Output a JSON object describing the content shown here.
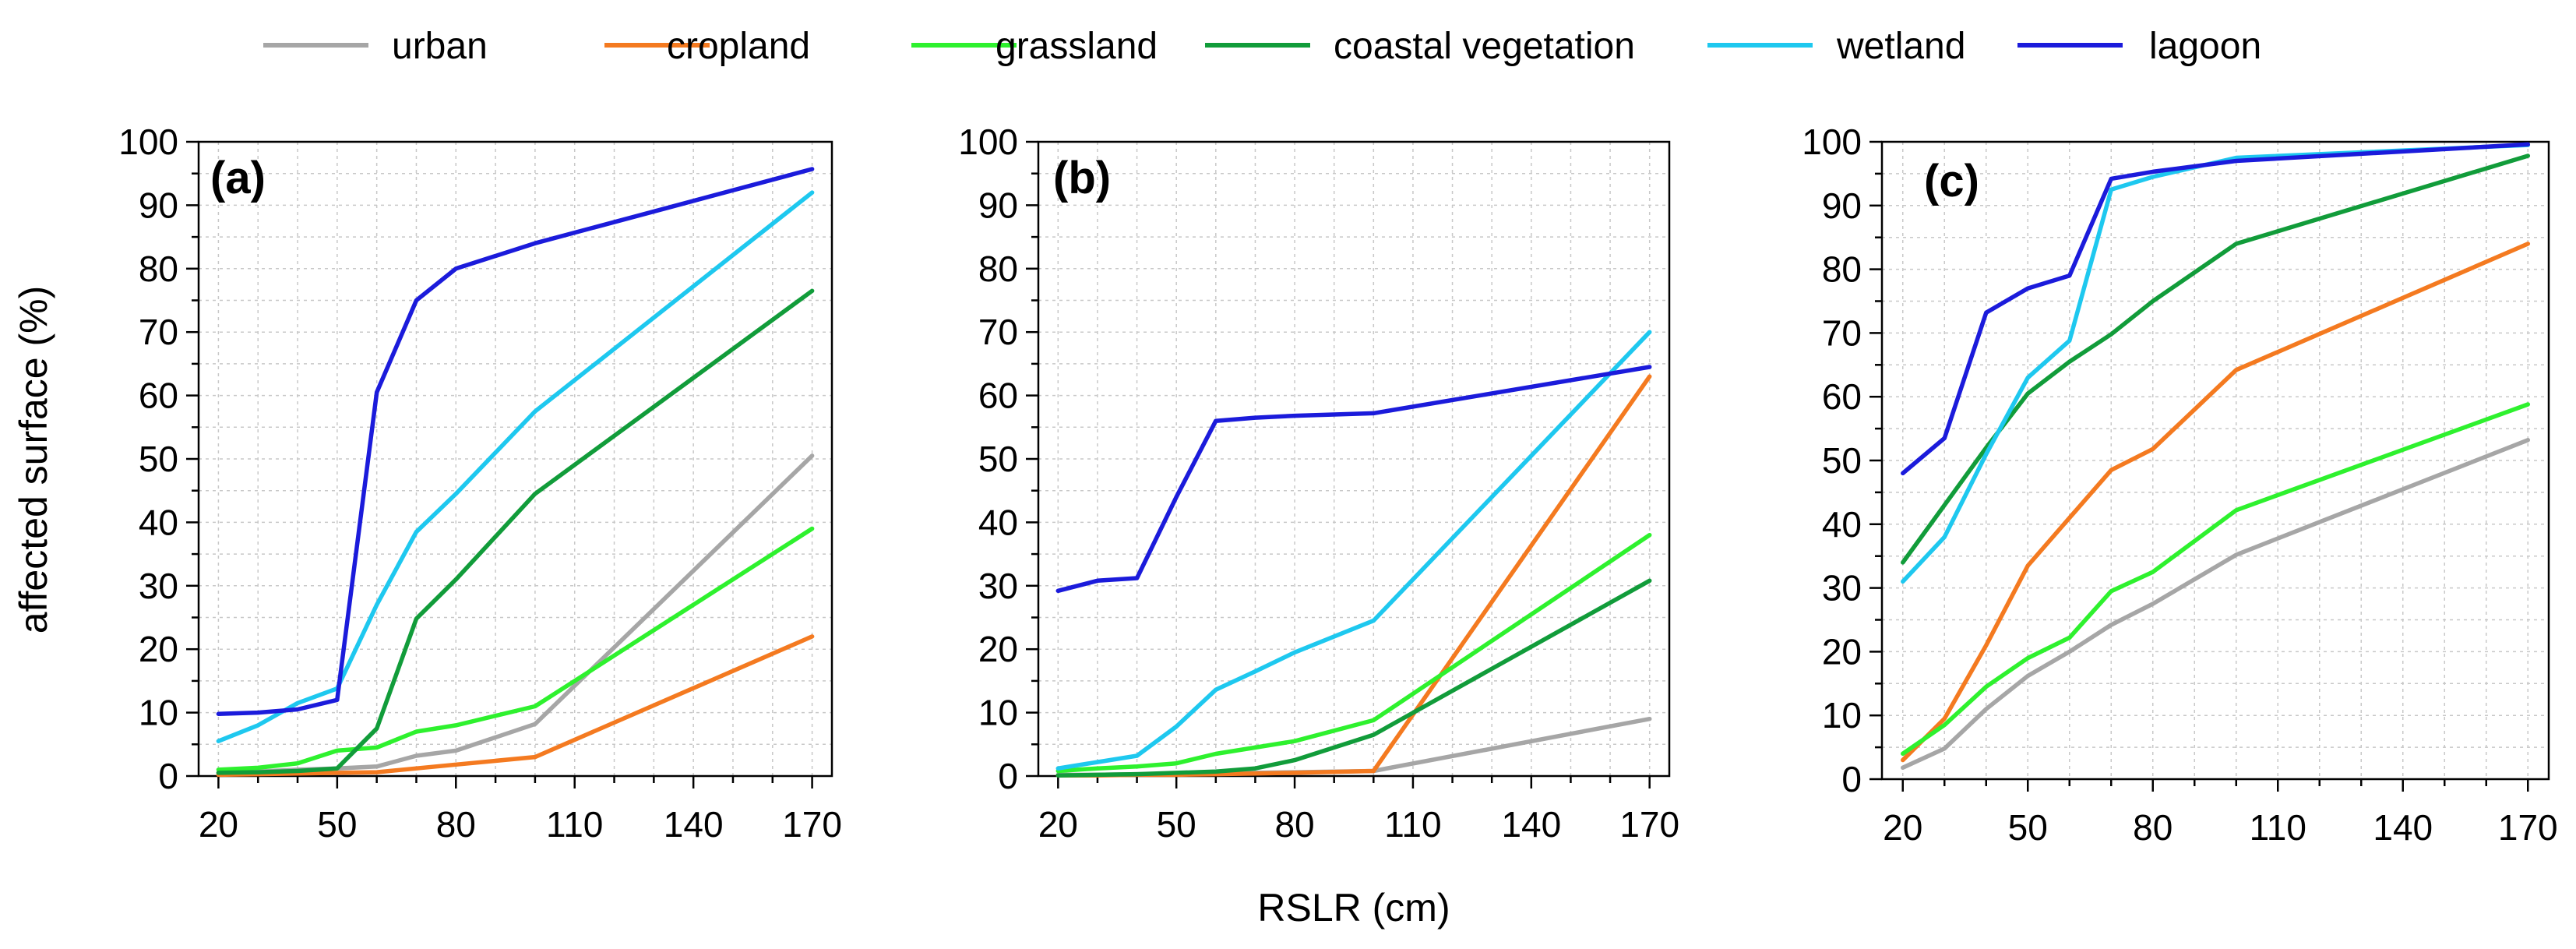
{
  "legend": [
    {
      "name": "urban",
      "color": "#a6a6a6"
    },
    {
      "name": "cropland",
      "color": "#f47a20"
    },
    {
      "name": "grassland",
      "color": "#2ef12e"
    },
    {
      "name": "coastal vegetation",
      "color": "#119c3a"
    },
    {
      "name": "wetland",
      "color": "#1ec8ef"
    },
    {
      "name": "lagoon",
      "color": "#1b1bdb"
    }
  ],
  "xlabel": "RSLR (cm)",
  "ylabel": "affected surface (%)",
  "chart_data": [
    {
      "type": "line",
      "panel": "(a)",
      "xlim": [
        15,
        175
      ],
      "ylim": [
        0,
        100
      ],
      "xticks": [
        20,
        50,
        80,
        110,
        140,
        170
      ],
      "yticks": [
        0,
        10,
        20,
        30,
        40,
        50,
        60,
        70,
        80,
        90,
        100
      ],
      "grid": true,
      "series": [
        {
          "name": "urban",
          "x": [
            20,
            30,
            40,
            50,
            60,
            70,
            80,
            100,
            170
          ],
          "values": [
            0.5,
            0.7,
            1,
            1.2,
            1.5,
            3.2,
            4,
            8.2,
            50.5
          ]
        },
        {
          "name": "cropland",
          "x": [
            20,
            30,
            40,
            50,
            60,
            70,
            80,
            100,
            170
          ],
          "values": [
            0.2,
            0.3,
            0.4,
            0.5,
            0.6,
            1.2,
            1.8,
            3,
            22
          ]
        },
        {
          "name": "grassland",
          "x": [
            20,
            30,
            40,
            50,
            60,
            70,
            80,
            100,
            170
          ],
          "values": [
            1,
            1.3,
            2,
            4,
            4.5,
            7,
            8,
            11,
            39
          ]
        },
        {
          "name": "coastal vegetation",
          "x": [
            20,
            30,
            40,
            50,
            60,
            70,
            80,
            100,
            170
          ],
          "values": [
            0.5,
            0.6,
            0.8,
            1.2,
            7.5,
            24.8,
            31,
            44.5,
            76.5
          ]
        },
        {
          "name": "wetland",
          "x": [
            20,
            30,
            40,
            50,
            60,
            70,
            80,
            100,
            170
          ],
          "values": [
            5.5,
            8,
            11.5,
            13.8,
            27,
            38.5,
            44.5,
            57.5,
            92
          ]
        },
        {
          "name": "lagoon",
          "x": [
            20,
            30,
            40,
            50,
            60,
            70,
            80,
            100,
            170
          ],
          "values": [
            9.8,
            10,
            10.5,
            12,
            60.5,
            75,
            80,
            84,
            95.7
          ]
        }
      ]
    },
    {
      "type": "line",
      "panel": "(b)",
      "xlim": [
        15,
        175
      ],
      "ylim": [
        0,
        100
      ],
      "xticks": [
        20,
        50,
        80,
        110,
        140,
        170
      ],
      "yticks": [
        0,
        10,
        20,
        30,
        40,
        50,
        60,
        70,
        80,
        90,
        100
      ],
      "grid": true,
      "series": [
        {
          "name": "urban",
          "x": [
            20,
            30,
            40,
            50,
            60,
            70,
            80,
            100,
            170
          ],
          "values": [
            0.2,
            0.2,
            0.3,
            0.3,
            0.4,
            0.5,
            0.6,
            0.8,
            9
          ]
        },
        {
          "name": "cropland",
          "x": [
            20,
            30,
            40,
            50,
            60,
            70,
            80,
            100,
            170
          ],
          "values": [
            0.1,
            0.1,
            0.2,
            0.2,
            0.3,
            0.4,
            0.5,
            0.8,
            63
          ]
        },
        {
          "name": "grassland",
          "x": [
            20,
            30,
            40,
            50,
            60,
            70,
            80,
            100,
            170
          ],
          "values": [
            0.8,
            1.2,
            1.5,
            2,
            3.5,
            4.5,
            5.5,
            8.8,
            38
          ]
        },
        {
          "name": "coastal vegetation",
          "x": [
            20,
            30,
            40,
            50,
            60,
            70,
            80,
            100,
            170
          ],
          "values": [
            0.1,
            0.2,
            0.3,
            0.5,
            0.7,
            1.2,
            2.5,
            6.5,
            30.8
          ]
        },
        {
          "name": "wetland",
          "x": [
            20,
            30,
            40,
            50,
            60,
            70,
            80,
            100,
            170
          ],
          "values": [
            1.2,
            2.2,
            3.2,
            7.8,
            13.6,
            16.5,
            19.5,
            24.5,
            70
          ]
        },
        {
          "name": "lagoon",
          "x": [
            20,
            30,
            40,
            50,
            60,
            70,
            80,
            100,
            170
          ],
          "values": [
            29.2,
            30.8,
            31.2,
            44,
            56,
            56.5,
            56.8,
            57.2,
            64.5
          ]
        }
      ]
    },
    {
      "type": "line",
      "panel": "(c)",
      "xlim": [
        15,
        175
      ],
      "ylim": [
        0,
        100
      ],
      "xticks": [
        20,
        50,
        80,
        110,
        140,
        170
      ],
      "yticks": [
        0,
        10,
        20,
        30,
        40,
        50,
        60,
        70,
        80,
        90,
        100
      ],
      "grid": true,
      "series": [
        {
          "name": "urban",
          "x": [
            20,
            30,
            40,
            50,
            60,
            70,
            80,
            100,
            170
          ],
          "values": [
            1.8,
            4.8,
            11,
            16.2,
            20,
            24.2,
            27.5,
            35.2,
            53.2
          ]
        },
        {
          "name": "cropland",
          "x": [
            20,
            30,
            40,
            50,
            60,
            70,
            80,
            100,
            170
          ],
          "values": [
            3,
            9.5,
            21,
            33.5,
            41,
            48.5,
            51.8,
            64.2,
            84
          ]
        },
        {
          "name": "grassland",
          "x": [
            20,
            30,
            40,
            50,
            60,
            70,
            80,
            100,
            170
          ],
          "values": [
            4,
            8.5,
            14.5,
            19,
            22.2,
            29.5,
            32.5,
            42.2,
            58.8
          ]
        },
        {
          "name": "coastal vegetation",
          "x": [
            20,
            30,
            40,
            50,
            60,
            70,
            80,
            100,
            170
          ],
          "values": [
            34,
            43,
            52,
            60.5,
            65.5,
            69.8,
            75,
            84,
            97.8
          ]
        },
        {
          "name": "wetland",
          "x": [
            20,
            30,
            40,
            50,
            60,
            70,
            80,
            100,
            170
          ],
          "values": [
            31,
            38,
            51,
            63,
            68.8,
            92.5,
            94.5,
            97.5,
            99.5
          ]
        },
        {
          "name": "lagoon",
          "x": [
            20,
            30,
            40,
            50,
            60,
            70,
            80,
            100,
            170
          ],
          "values": [
            48,
            53.5,
            73.2,
            77,
            79,
            94.2,
            95.3,
            97,
            99.6
          ]
        }
      ]
    }
  ]
}
